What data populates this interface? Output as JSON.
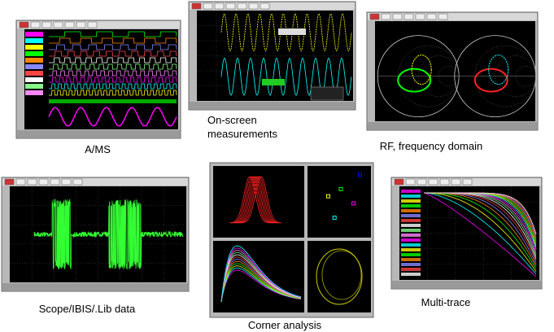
{
  "captions": {
    "ams": "A/MS",
    "onscreen": [
      "On-screen",
      "measurements"
    ],
    "rf": "RF, frequency domain",
    "scope": "Scope/IBIS/.Lib data",
    "corner": "Corner analysis",
    "multi": "Multi-trace"
  }
}
